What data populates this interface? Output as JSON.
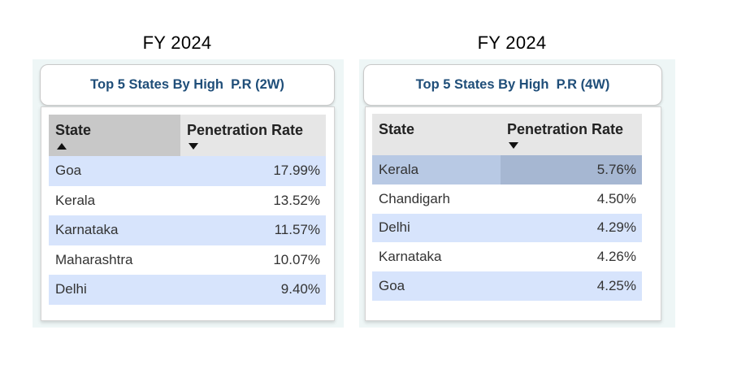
{
  "left": {
    "fy_label": "FY 2024",
    "title": "Top 5 States By High  P.R (2W)",
    "headers": {
      "state": "State",
      "rate": "Penetration Rate"
    },
    "sort": {
      "state": "ascending",
      "rate": "descending"
    },
    "rows": [
      {
        "state": "Goa",
        "rate": "17.99%"
      },
      {
        "state": "Kerala",
        "rate": "13.52%"
      },
      {
        "state": "Karnataka",
        "rate": "11.57%"
      },
      {
        "state": "Maharashtra",
        "rate": "10.07%"
      },
      {
        "state": "Delhi",
        "rate": "9.40%"
      }
    ]
  },
  "right": {
    "fy_label": "FY 2024",
    "title": "Top 5 States By High  P.R (4W)",
    "headers": {
      "state": "State",
      "rate": "Penetration Rate"
    },
    "sort": {
      "rate": "descending"
    },
    "highlighted_row": "Kerala",
    "rows": [
      {
        "state": "Kerala",
        "rate": "5.76%"
      },
      {
        "state": "Chandigarh",
        "rate": "4.50%"
      },
      {
        "state": "Delhi",
        "rate": "4.29%"
      },
      {
        "state": "Karnataka",
        "rate": "4.26%"
      },
      {
        "state": "Goa",
        "rate": "4.25%"
      }
    ]
  },
  "colors": {
    "title_text": "#1f4e79",
    "band_row": "#d7e4fc",
    "header_bg": "#e6e6e6",
    "highlight_row": "#a6b7d2"
  },
  "chart_data": [
    {
      "type": "table",
      "title": "Top 5 States By High  P.R (2W)",
      "columns": [
        "State",
        "Penetration Rate"
      ],
      "rows": [
        [
          "Goa",
          "17.99%"
        ],
        [
          "Kerala",
          "13.52%"
        ],
        [
          "Karnataka",
          "11.57%"
        ],
        [
          "Maharashtra",
          "10.07%"
        ],
        [
          "Delhi",
          "9.40%"
        ]
      ]
    },
    {
      "type": "table",
      "title": "Top 5 States By High  P.R (4W)",
      "columns": [
        "State",
        "Penetration Rate"
      ],
      "rows": [
        [
          "Kerala",
          "5.76%"
        ],
        [
          "Chandigarh",
          "4.50%"
        ],
        [
          "Delhi",
          "4.29%"
        ],
        [
          "Karnataka",
          "4.26%"
        ],
        [
          "Goa",
          "4.25%"
        ]
      ]
    }
  ]
}
